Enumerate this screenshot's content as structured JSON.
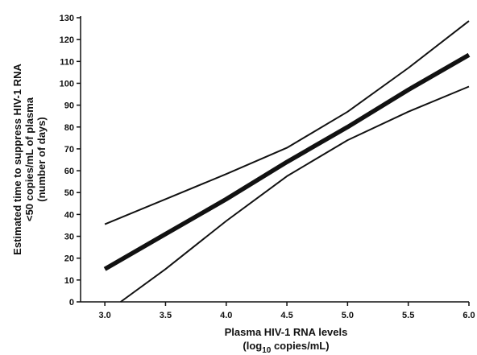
{
  "chart_data": {
    "type": "line",
    "xlabel": "Plasma HIV-1 RNA levels",
    "xlabel_line2_prefix": "(log",
    "xlabel_line2_sub": "10",
    "xlabel_line2_suffix": " copies/mL)",
    "ylabel_lines": [
      "Estimated time to suppress HIV-1 RNA",
      "<50 copies/mL of plasma",
      "(number of days)"
    ],
    "xlim": [
      2.8,
      6.0
    ],
    "ylim": [
      0,
      130
    ],
    "x_ticks": [
      "3.0",
      "3.5",
      "4.0",
      "4.5",
      "5.0",
      "5.5",
      "6.0"
    ],
    "y_ticks": [
      "0",
      "10",
      "20",
      "30",
      "40",
      "50",
      "60",
      "70",
      "80",
      "90",
      "100",
      "110",
      "120",
      "130"
    ],
    "grid": false,
    "legend": "none",
    "series": [
      {
        "role": "estimate",
        "x": [
          3.0,
          3.5,
          4.0,
          4.5,
          5.0,
          5.5,
          6.0
        ],
        "y": [
          15,
          31,
          47,
          64,
          80,
          97,
          113
        ]
      },
      {
        "role": "upper bound",
        "x": [
          3.0,
          3.5,
          4.0,
          4.5,
          5.0,
          5.5,
          6.0
        ],
        "y": [
          35.5,
          47,
          58.5,
          70.5,
          87,
          107,
          128.5
        ]
      },
      {
        "role": "lower bound",
        "x": [
          3.13,
          3.5,
          4.0,
          4.5,
          5.0,
          5.5,
          6.0
        ],
        "y": [
          0,
          15,
          37,
          57.5,
          74,
          87,
          98.5
        ]
      }
    ]
  },
  "colors": {
    "line": "#111111",
    "background": "#ffffff"
  }
}
